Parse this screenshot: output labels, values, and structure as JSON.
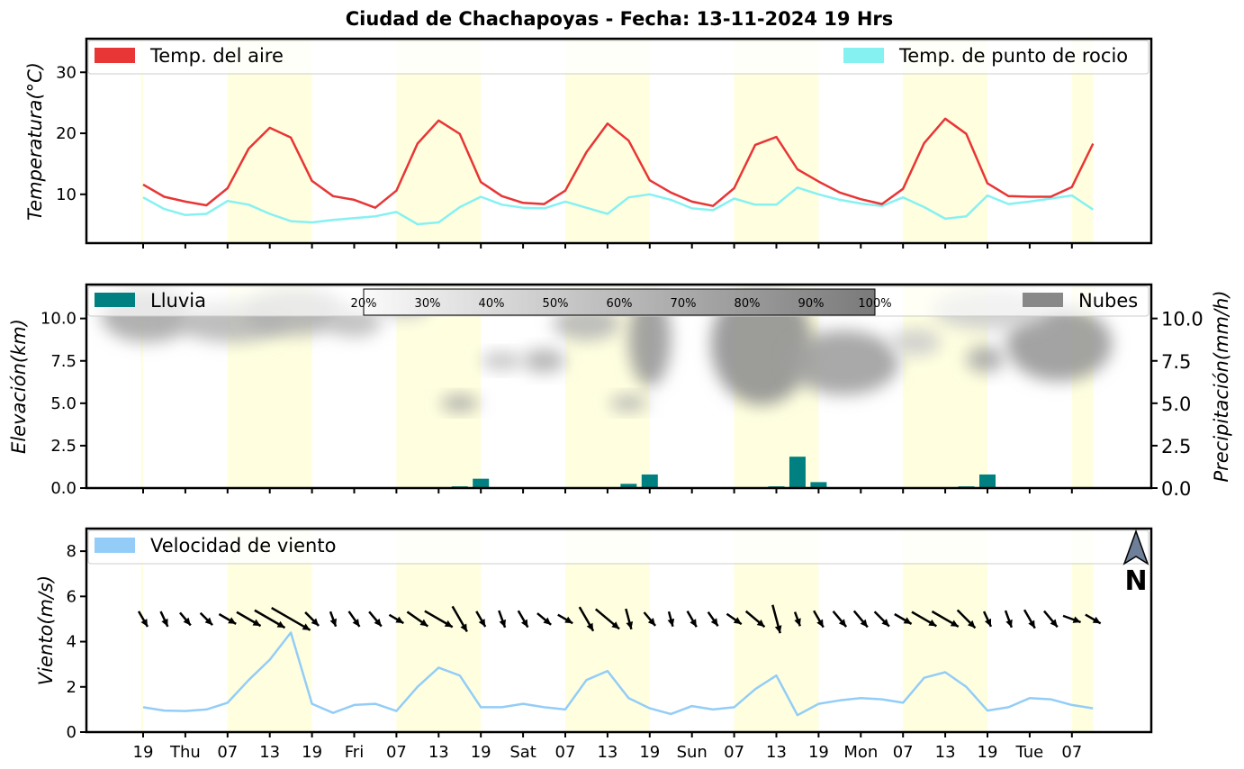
{
  "title": "Ciudad de Chachapoyas   -   Fecha: 13-11-2024 19 Hrs",
  "colors": {
    "daylight": "#ffffe0",
    "air_temp": "#e83535",
    "dew_point": "#86f1f1",
    "rain": "#008080",
    "clouds": "#888888",
    "wind_speed": "#93cdf7",
    "wind_arrow": "#000000",
    "compass": "#6e7f99"
  },
  "x_tick_labels": [
    "19",
    "Thu",
    "07",
    "13",
    "19",
    "Fri",
    "07",
    "13",
    "19",
    "Sat",
    "07",
    "13",
    "19",
    "Sun",
    "07",
    "13",
    "19",
    "Mon",
    "07",
    "13",
    "19",
    "Tue",
    "07"
  ],
  "compass_label": "N",
  "chart_data": [
    {
      "type": "line",
      "ylabel": "Temperatura(°C)",
      "ylim": [
        2,
        35.5
      ],
      "yticks": [
        "10",
        "20",
        "30"
      ],
      "legend_placement": "top",
      "series": [
        {
          "name": "Temp. del aire",
          "values": [
            11.6,
            9.6,
            8.8,
            8.2,
            11.0,
            17.5,
            20.9,
            19.3,
            12.2,
            9.7,
            9.1,
            7.8,
            10.6,
            18.3,
            22.1,
            19.9,
            12.0,
            9.7,
            8.6,
            8.4,
            10.6,
            16.9,
            21.6,
            18.8,
            12.3,
            10.3,
            8.8,
            8.1,
            11.0,
            18.1,
            19.4,
            14.1,
            12.1,
            10.3,
            9.2,
            8.4,
            10.9,
            18.4,
            22.4,
            19.9,
            11.8,
            9.7,
            9.6,
            9.6,
            11.2,
            18.3
          ]
        },
        {
          "name": "Temp. de punto de rocio",
          "values": [
            9.5,
            7.6,
            6.6,
            6.8,
            8.9,
            8.3,
            6.8,
            5.6,
            5.4,
            5.8,
            6.1,
            6.4,
            7.1,
            5.1,
            5.4,
            7.9,
            9.6,
            8.3,
            7.8,
            7.7,
            8.8,
            7.8,
            6.8,
            9.5,
            10.0,
            9.1,
            7.7,
            7.4,
            9.3,
            8.3,
            8.3,
            11.1,
            10.0,
            9.1,
            8.5,
            8.1,
            9.5,
            7.9,
            6.0,
            6.4,
            9.8,
            8.4,
            8.8,
            9.3,
            9.8,
            7.5
          ]
        }
      ]
    },
    {
      "type": "bar",
      "ylabel": "Elevación(km)",
      "ylabel_right": "Precipitación(mm/h)",
      "ylim": [
        0,
        12
      ],
      "yticks": [
        "0.0",
        "2.5",
        "5.0",
        "7.5",
        "10.0"
      ],
      "yticks_right": [
        "0.0",
        "2.5",
        "5.0",
        "7.5",
        "10.0"
      ],
      "legend_left": "Lluvia",
      "legend_right": "Nubes",
      "colorbar_labels": [
        "20%",
        "30%",
        "40%",
        "50%",
        "60%",
        "70%",
        "80%",
        "90%",
        "100%"
      ],
      "series": [
        {
          "name": "Lluvia",
          "values": [
            0,
            0,
            0,
            0,
            0,
            0,
            0,
            0,
            0.05,
            0,
            0,
            0,
            0,
            0,
            0,
            0.1,
            0.55,
            0,
            0,
            0,
            0,
            0,
            0.05,
            0.25,
            0.8,
            0,
            0,
            0,
            0,
            0,
            0.1,
            1.85,
            0.35,
            0,
            0,
            0,
            0,
            0,
            0.05,
            0.1,
            0.8,
            0.05,
            0,
            0,
            0,
            0
          ]
        }
      ],
      "clouds": [
        {
          "x": 0.2,
          "y": 10.2,
          "rx": 2.2,
          "ry": 1.6,
          "cover": 0.45
        },
        {
          "x": 4.2,
          "y": 9.8,
          "rx": 2.6,
          "ry": 1.2,
          "cover": 0.35
        },
        {
          "x": 7.2,
          "y": 10.4,
          "rx": 2.4,
          "ry": 1.4,
          "cover": 0.4
        },
        {
          "x": 10.0,
          "y": 9.8,
          "rx": 1.3,
          "ry": 0.9,
          "cover": 0.3
        },
        {
          "x": 12.4,
          "y": 10.8,
          "rx": 1.2,
          "ry": 0.8,
          "cover": 0.25
        },
        {
          "x": 15.0,
          "y": 5.0,
          "rx": 0.9,
          "ry": 0.45,
          "cover": 0.5
        },
        {
          "x": 17.0,
          "y": 7.5,
          "rx": 1.0,
          "ry": 0.5,
          "cover": 0.3
        },
        {
          "x": 19.0,
          "y": 7.5,
          "rx": 1.0,
          "ry": 0.7,
          "cover": 0.4
        },
        {
          "x": 21.0,
          "y": 9.7,
          "rx": 1.6,
          "ry": 1.0,
          "cover": 0.35
        },
        {
          "x": 23.0,
          "y": 5.0,
          "rx": 0.9,
          "ry": 0.45,
          "cover": 0.4
        },
        {
          "x": 24.0,
          "y": 8.8,
          "rx": 1.0,
          "ry": 2.8,
          "cover": 0.55
        },
        {
          "x": 29.3,
          "y": 8.5,
          "rx": 2.4,
          "ry": 3.6,
          "cover": 0.6
        },
        {
          "x": 33.2,
          "y": 7.4,
          "rx": 2.6,
          "ry": 1.9,
          "cover": 0.5
        },
        {
          "x": 36.6,
          "y": 8.6,
          "rx": 1.2,
          "ry": 0.8,
          "cover": 0.2
        },
        {
          "x": 39.9,
          "y": 7.6,
          "rx": 0.9,
          "ry": 0.8,
          "cover": 0.45
        },
        {
          "x": 43.4,
          "y": 8.5,
          "rx": 2.5,
          "ry": 2.2,
          "cover": 0.55
        },
        {
          "x": 40.2,
          "y": 10.5,
          "rx": 2.8,
          "ry": 1.2,
          "cover": 0.2
        }
      ]
    },
    {
      "type": "line",
      "ylabel": "Viento(m/s)",
      "ylim": [
        0,
        9
      ],
      "yticks": [
        "0",
        "2",
        "4",
        "6",
        "8"
      ],
      "series": [
        {
          "name": "Velocidad de viento",
          "values": [
            1.1,
            0.95,
            0.93,
            1.0,
            1.3,
            2.3,
            3.2,
            4.4,
            1.25,
            0.85,
            1.2,
            1.25,
            0.93,
            2.0,
            2.85,
            2.5,
            1.1,
            1.1,
            1.25,
            1.1,
            1.0,
            2.3,
            2.7,
            1.5,
            1.05,
            0.8,
            1.15,
            1.0,
            1.1,
            1.9,
            2.5,
            0.75,
            1.25,
            1.4,
            1.5,
            1.45,
            1.3,
            2.4,
            2.65,
            2.0,
            0.95,
            1.1,
            1.5,
            1.45,
            1.2,
            1.05
          ]
        }
      ],
      "wind_direction_deg": [
        330,
        335,
        320,
        315,
        300,
        300,
        300,
        300,
        315,
        340,
        325,
        320,
        300,
        305,
        300,
        330,
        330,
        340,
        330,
        310,
        300,
        330,
        310,
        345,
        320,
        345,
        330,
        325,
        305,
        310,
        345,
        340,
        330,
        320,
        320,
        315,
        300,
        300,
        300,
        315,
        335,
        340,
        330,
        320,
        290,
        300
      ]
    }
  ]
}
